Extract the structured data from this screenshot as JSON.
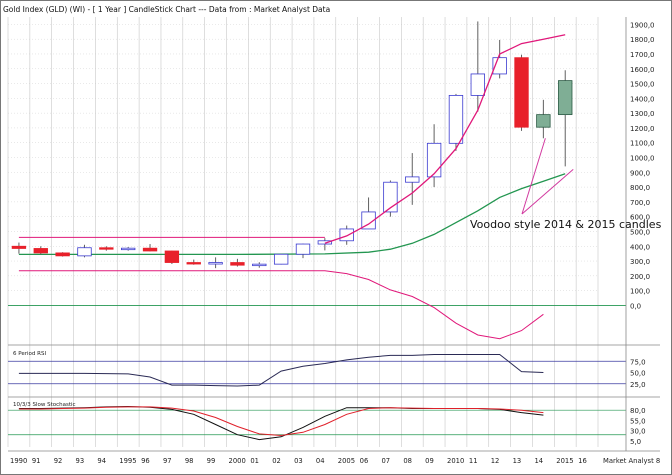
{
  "window_title": "Gold Index (GLD) (WI) - [ 1 Year ] CandleStick Chart --- Data from : Market Analyst Data",
  "annotation": "Voodoo style 2014 & 2015 candles",
  "colors": {
    "up_body": "#ffffff",
    "down_body": "#e8202a",
    "projected_up_body": "#7fae95",
    "candle_edge": "#3a3ad0",
    "wick": "#606060",
    "moving_average_short": "#e0187a",
    "moving_average_long": "#239650",
    "stochastic_k": "#101010",
    "stochastic_d": "#e0202a",
    "reference_line": "#3a3aa0",
    "annotation_arrow": "#d23aa0",
    "grid": "#c8c8c8"
  },
  "chart_data": [
    {
      "type": "candlestick",
      "title": "Gold Index (GLD) (WI) - [ 1 Year ] CandleStick Chart --- Data from : Market Analyst Data",
      "x_tick_labels": [
        "1990",
        "91",
        "92",
        "93",
        "94",
        "1995",
        "96",
        "97",
        "98",
        "99",
        "2000",
        "01",
        "02",
        "03",
        "04",
        "2005",
        "06",
        "07",
        "08",
        "09",
        "2010",
        "11",
        "12",
        "13",
        "14",
        "2015",
        "16"
      ],
      "x_axis_label": "Market Analyst 8",
      "y_tick_labels": [
        "1900,0",
        "1800,0",
        "1700,0",
        "1600,0",
        "1500,0",
        "1400,0",
        "1300,0",
        "1200,0",
        "1100,0",
        "1000,0",
        "900,0",
        "800,0",
        "700,0",
        "600,0",
        "500,0",
        "400,0",
        "300,0",
        "200,0",
        "100,0",
        "0,0"
      ],
      "ylim": [
        -200,
        1950
      ],
      "candles": [
        {
          "year": 1990,
          "open": 400,
          "high": 425,
          "low": 350,
          "close": 385
        },
        {
          "year": 1991,
          "open": 385,
          "high": 400,
          "low": 345,
          "close": 355
        },
        {
          "year": 1992,
          "open": 355,
          "high": 360,
          "low": 330,
          "close": 335
        },
        {
          "year": 1993,
          "open": 335,
          "high": 410,
          "low": 325,
          "close": 390
        },
        {
          "year": 1994,
          "open": 390,
          "high": 400,
          "low": 370,
          "close": 385
        },
        {
          "year": 1995,
          "open": 385,
          "high": 395,
          "low": 370,
          "close": 387
        },
        {
          "year": 1996,
          "open": 387,
          "high": 415,
          "low": 365,
          "close": 368
        },
        {
          "year": 1997,
          "open": 368,
          "high": 370,
          "low": 280,
          "close": 290
        },
        {
          "year": 1998,
          "open": 290,
          "high": 310,
          "low": 275,
          "close": 288
        },
        {
          "year": 1999,
          "open": 288,
          "high": 325,
          "low": 252,
          "close": 290
        },
        {
          "year": 2000,
          "open": 290,
          "high": 315,
          "low": 263,
          "close": 272
        },
        {
          "year": 2001,
          "open": 272,
          "high": 292,
          "low": 255,
          "close": 279
        },
        {
          "year": 2002,
          "open": 279,
          "high": 350,
          "low": 276,
          "close": 346
        },
        {
          "year": 2003,
          "open": 346,
          "high": 418,
          "low": 320,
          "close": 415
        },
        {
          "year": 2004,
          "open": 415,
          "high": 455,
          "low": 372,
          "close": 437
        },
        {
          "year": 2005,
          "open": 437,
          "high": 540,
          "low": 410,
          "close": 517
        },
        {
          "year": 2006,
          "open": 517,
          "high": 730,
          "low": 520,
          "close": 632
        },
        {
          "year": 2007,
          "open": 632,
          "high": 845,
          "low": 600,
          "close": 833
        },
        {
          "year": 2008,
          "open": 833,
          "high": 1030,
          "low": 680,
          "close": 869
        },
        {
          "year": 2009,
          "open": 869,
          "high": 1225,
          "low": 800,
          "close": 1096
        },
        {
          "year": 2010,
          "open": 1096,
          "high": 1430,
          "low": 1045,
          "close": 1420
        },
        {
          "year": 2011,
          "open": 1420,
          "high": 1920,
          "low": 1310,
          "close": 1565
        },
        {
          "year": 2012,
          "open": 1565,
          "high": 1795,
          "low": 1535,
          "close": 1675
        },
        {
          "year": 2013,
          "open": 1675,
          "high": 1695,
          "low": 1180,
          "close": 1205
        },
        {
          "year": 2014,
          "open": 1205,
          "high": 1390,
          "low": 1130,
          "close": 1290,
          "projected": true
        },
        {
          "year": 2015,
          "open": 1290,
          "high": 1590,
          "low": 940,
          "close": 1520,
          "projected": true
        }
      ],
      "moving_average_short": [
        {
          "year": 2004,
          "value": 420
        },
        {
          "year": 2005,
          "value": 470
        },
        {
          "year": 2006,
          "value": 550
        },
        {
          "year": 2007,
          "value": 660
        },
        {
          "year": 2008,
          "value": 760
        },
        {
          "year": 2009,
          "value": 890
        },
        {
          "year": 2010,
          "value": 1060
        },
        {
          "year": 2011,
          "value": 1320
        },
        {
          "year": 2012,
          "value": 1700
        },
        {
          "year": 2013,
          "value": 1770
        },
        {
          "year": 2014,
          "value": 1800
        },
        {
          "year": 2015,
          "value": 1830
        }
      ],
      "moving_average_long": [
        {
          "year": 1990,
          "value": 345
        },
        {
          "year": 2000,
          "value": 345
        },
        {
          "year": 2004,
          "value": 348
        },
        {
          "year": 2006,
          "value": 360
        },
        {
          "year": 2007,
          "value": 380
        },
        {
          "year": 2008,
          "value": 420
        },
        {
          "year": 2009,
          "value": 480
        },
        {
          "year": 2010,
          "value": 560
        },
        {
          "year": 2011,
          "value": 640
        },
        {
          "year": 2012,
          "value": 730
        },
        {
          "year": 2013,
          "value": 790
        },
        {
          "year": 2014,
          "value": 840
        },
        {
          "year": 2015,
          "value": 890
        }
      ],
      "lower_band": [
        {
          "year": 1990,
          "value": 235
        },
        {
          "year": 2004,
          "value": 235
        },
        {
          "year": 2005,
          "value": 215
        },
        {
          "year": 2006,
          "value": 175
        },
        {
          "year": 2007,
          "value": 105
        },
        {
          "year": 2008,
          "value": 60
        },
        {
          "year": 2009,
          "value": -15
        },
        {
          "year": 2010,
          "value": -120
        },
        {
          "year": 2011,
          "value": -200
        },
        {
          "year": 2012,
          "value": -225
        },
        {
          "year": 2013,
          "value": -170
        },
        {
          "year": 2014,
          "value": -60
        }
      ],
      "upper_band": [
        {
          "year": 1990,
          "value": 460
        },
        {
          "year": 2004,
          "value": 460
        }
      ],
      "zero_line": 0
    },
    {
      "type": "line",
      "title": "6 Period RSI",
      "y_tick_labels": [
        "75,0",
        "50,0",
        "25,0"
      ],
      "ylim": [
        0,
        100
      ],
      "reference_lines": [
        75,
        25
      ],
      "series": [
        {
          "x": [
            1990,
            1993,
            1995,
            1996,
            1997,
            1998,
            1999,
            2000,
            2001,
            2002,
            2003,
            2004,
            2005,
            2006,
            2007,
            2008,
            2009,
            2010,
            2011,
            2012,
            2013,
            2014
          ],
          "values": [
            48,
            48,
            47,
            40,
            22,
            22,
            21,
            20,
            22,
            53,
            64,
            70,
            78,
            84,
            88,
            88,
            90,
            90,
            90,
            90,
            52,
            50
          ]
        }
      ]
    },
    {
      "type": "line",
      "title": "10/3/3 Slow Stochastic",
      "y_tick_labels": [
        "80,0",
        "55,0",
        "30,0",
        "5,0"
      ],
      "ylim": [
        -10,
        100
      ],
      "reference_lines": [
        80,
        20
      ],
      "series": [
        {
          "x": [
            1990,
            1991,
            1992,
            1993,
            1994,
            1995,
            1996,
            1997,
            1998,
            1999,
            2000,
            2001,
            2002,
            2003,
            2004,
            2005,
            2006,
            2007,
            2008,
            2009,
            2010,
            2011,
            2012,
            2013,
            2014
          ],
          "values": [
            84,
            84,
            85,
            86,
            88,
            89,
            87,
            82,
            70,
            45,
            20,
            8,
            15,
            38,
            65,
            86,
            86,
            86,
            84,
            84,
            84,
            84,
            82,
            74,
            68
          ]
        },
        {
          "x": [
            1990,
            1991,
            1992,
            1993,
            1994,
            1995,
            1996,
            1997,
            1998,
            1999,
            2000,
            2001,
            2002,
            2003,
            2004,
            2005,
            2006,
            2007,
            2008,
            2009,
            2010,
            2011,
            2012,
            2013,
            2014
          ],
          "values": [
            83,
            83,
            84,
            85,
            87,
            88,
            88,
            85,
            78,
            62,
            40,
            22,
            18,
            26,
            45,
            70,
            84,
            86,
            85,
            84,
            84,
            84,
            83,
            80,
            74
          ]
        }
      ]
    }
  ]
}
